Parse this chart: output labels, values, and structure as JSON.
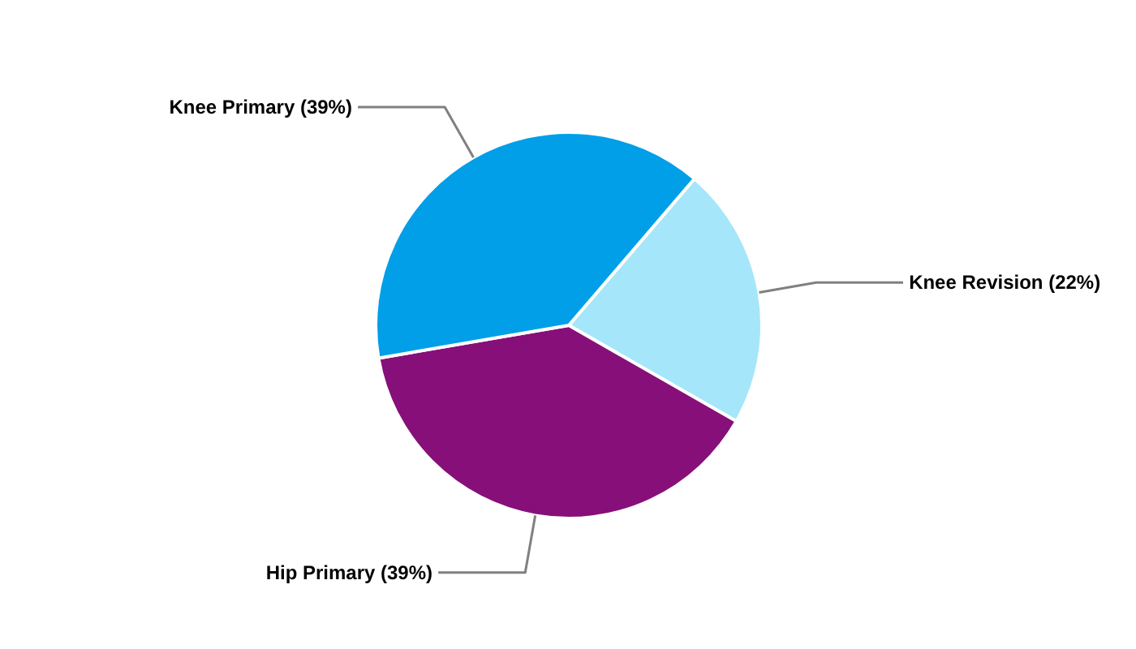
{
  "chart_data": {
    "type": "pie",
    "categories": [
      "Knee Revision (22%)",
      "Hip Primary (39%)",
      "Knee Primary (39%)"
    ],
    "values": [
      22,
      39,
      39
    ],
    "colors": [
      "#a6e6fb",
      "#860f7a",
      "#009fe8"
    ]
  }
}
